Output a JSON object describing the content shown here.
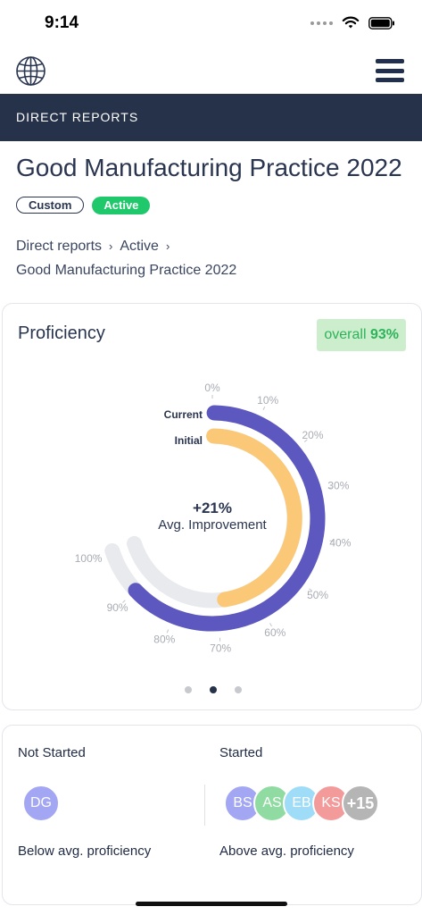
{
  "status": {
    "time": "9:14"
  },
  "section": {
    "label": "DIRECT REPORTS"
  },
  "page": {
    "title": "Good Manufacturing Practice 2022"
  },
  "badges": {
    "custom": "Custom",
    "active": "Active"
  },
  "breadcrumb": {
    "item1": "Direct reports",
    "item2": "Active",
    "item3": "Good Manufacturing Practice 2022"
  },
  "proficiency": {
    "title": "Proficiency",
    "overall_label": "overall",
    "overall_value": "93%",
    "current_label": "Current",
    "initial_label": "Initial",
    "improvement_value": "+21%",
    "improvement_label": "Avg. Improvement",
    "current_percent": 90,
    "initial_percent": 68,
    "ticks": [
      "0%",
      "10%",
      "20%",
      "30%",
      "40%",
      "50%",
      "60%",
      "70%",
      "80%",
      "90%",
      "100%"
    ],
    "colors": {
      "current": "#5c58bf",
      "initial": "#fbc877",
      "track": "#e9eaed"
    },
    "pager": {
      "total": 3,
      "active": 2
    }
  },
  "summary": {
    "not_started_label": "Not Started",
    "started_label": "Started",
    "below_label": "Below avg. proficiency",
    "above_label": "Above avg. proficiency",
    "not_started_avatars": [
      {
        "initials": "DG",
        "color": "#a3a7f3"
      }
    ],
    "started_avatars": [
      {
        "initials": "BS",
        "color": "#a3a7f3"
      },
      {
        "initials": "AS",
        "color": "#8fdba1"
      },
      {
        "initials": "EB",
        "color": "#9fdcf8"
      },
      {
        "initials": "KS",
        "color": "#f39b9b"
      },
      {
        "initials": "+15",
        "color": "#b5b5b5"
      }
    ]
  }
}
